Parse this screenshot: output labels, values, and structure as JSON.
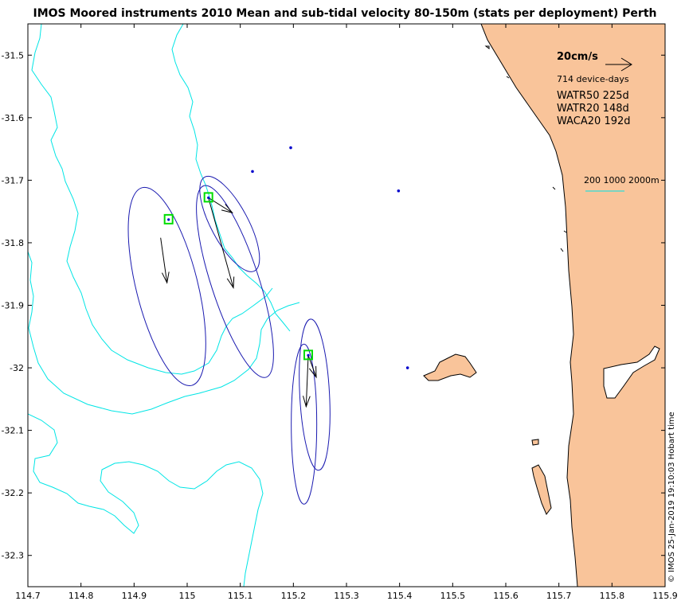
{
  "title": "IMOS Moored instruments 2010 Mean and sub-tidal velocity 80-150m (stats per deployment) Perth",
  "credit": "© IMOS 25-Jan-2019 19:10:03 Hobart time",
  "colors": {
    "land": "#F9C49A",
    "coast": "#000000",
    "isobath": "#00E5E5",
    "ellipse": "#1A1AB0",
    "site_box": "#00DD00",
    "station": "#0000CC",
    "vector": "#000000"
  },
  "legend": {
    "scale_label": "20cm/s",
    "device_days": "714 device-days",
    "deployments": [
      "WATR50 225d",
      "WATR20 148d",
      "WACA20 192d"
    ],
    "isobath_label": "200 1000 2000m"
  },
  "chart_data": {
    "type": "map",
    "xlim": [
      114.7,
      115.9
    ],
    "ylim": [
      -32.35,
      -31.45
    ],
    "x_ticks": [
      114.7,
      114.8,
      114.9,
      115,
      115.1,
      115.2,
      115.3,
      115.4,
      115.5,
      115.6,
      115.7,
      115.8,
      115.9
    ],
    "x_tick_labels": [
      "114.7",
      "114.8",
      "114.9",
      "115",
      "115.1",
      "115.2",
      "115.3",
      "115.4",
      "115.5",
      "115.6",
      "115.7",
      "115.8",
      "115.9"
    ],
    "y_ticks": [
      -31.5,
      -31.6,
      -31.7,
      -31.8,
      -31.9,
      -32,
      -32.1,
      -32.2,
      -32.3
    ],
    "y_tick_labels": [
      "-31.5",
      "-31.6",
      "-31.7",
      "-31.8",
      "-31.9",
      "-32",
      "-32.1",
      "-32.2",
      "-32.3"
    ],
    "stations": [
      {
        "lon": 115.195,
        "lat": -31.648
      },
      {
        "lon": 115.123,
        "lat": -31.686
      },
      {
        "lon": 115.398,
        "lat": -31.717
      },
      {
        "lon": 115.415,
        "lat": -32.0
      }
    ],
    "sites": [
      {
        "lon": 114.965,
        "lat": -31.763
      },
      {
        "lon": 115.04,
        "lat": -31.728
      },
      {
        "lon": 115.228,
        "lat": -31.98
      }
    ],
    "velocity_vectors": [
      {
        "lon0": 114.95,
        "lat0": -31.792,
        "lon1": 114.962,
        "lat1": -31.864
      },
      {
        "lon0": 115.04,
        "lat0": -31.728,
        "lon1": 115.085,
        "lat1": -31.752
      },
      {
        "lon0": 115.04,
        "lat0": -31.728,
        "lon1": 115.087,
        "lat1": -31.872
      },
      {
        "lon0": 115.228,
        "lat0": -31.98,
        "lon1": 115.243,
        "lat1": -32.015
      },
      {
        "lon0": 115.228,
        "lat0": -31.98,
        "lon1": 115.224,
        "lat1": -32.062
      }
    ],
    "ellipses": [
      {
        "clon": 114.962,
        "clat": -31.87,
        "rx_deg": 0.058,
        "ry_deg": 0.163,
        "angle_deg": -14
      },
      {
        "clon": 115.09,
        "clat": -31.862,
        "rx_deg": 0.045,
        "ry_deg": 0.161,
        "angle_deg": -18
      },
      {
        "clon": 115.08,
        "clat": -31.77,
        "rx_deg": 0.035,
        "ry_deg": 0.085,
        "angle_deg": -28
      },
      {
        "clon": 115.24,
        "clat": -32.043,
        "rx_deg": 0.028,
        "ry_deg": 0.121,
        "angle_deg": -3
      },
      {
        "clon": 115.22,
        "clat": -32.09,
        "rx_deg": 0.024,
        "ry_deg": 0.128,
        "angle_deg": 0
      }
    ]
  }
}
